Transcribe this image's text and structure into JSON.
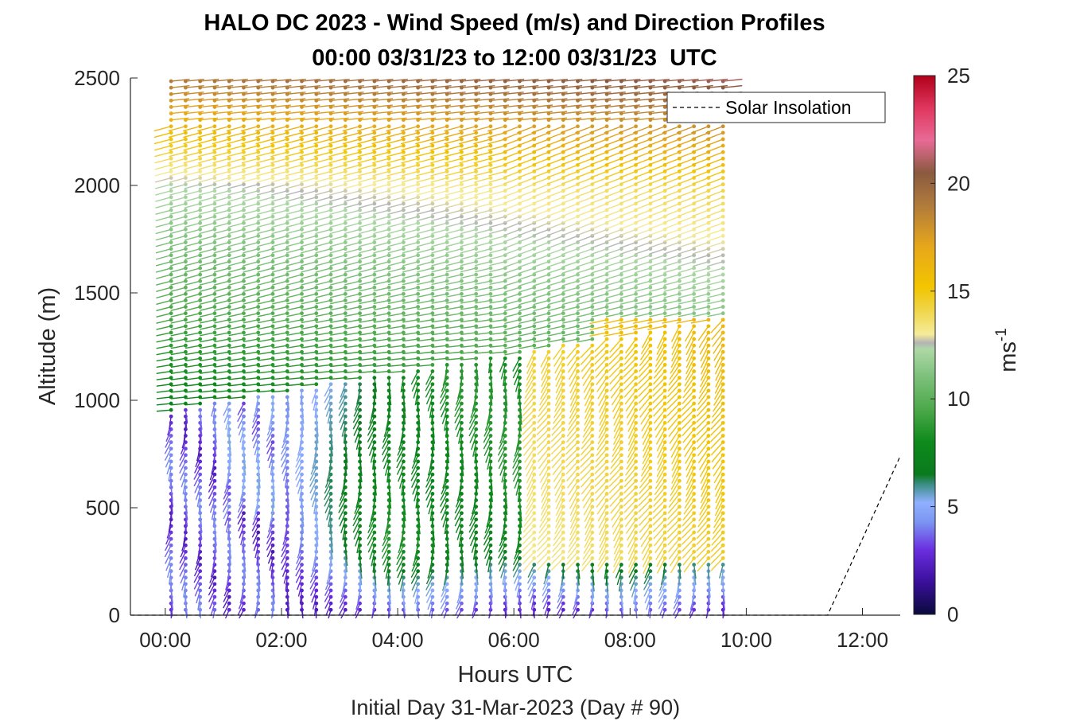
{
  "chart_data": {
    "type": "wind-barb-profile",
    "title": "HALO DC 2023 - Wind Speed (m/s) and Direction Profiles",
    "subtitle": "00:00 03/31/23 to 12:00 03/31/23  UTC",
    "xlabel": "Hours UTC",
    "xlabel2": "Initial Day 31-Mar-2023 (Day # 90)",
    "ylabel": "Altitude (m)",
    "xlim_hours": [
      -0.6,
      12.65
    ],
    "ylim": [
      0,
      2500
    ],
    "x_ticks": [
      {
        "v": 0,
        "label": "00:00"
      },
      {
        "v": 2,
        "label": "02:00"
      },
      {
        "v": 4,
        "label": "04:00"
      },
      {
        "v": 6,
        "label": "06:00"
      },
      {
        "v": 8,
        "label": "08:00"
      },
      {
        "v": 10,
        "label": "10:00"
      },
      {
        "v": 12,
        "label": "12:00"
      }
    ],
    "y_ticks": [
      0,
      500,
      1000,
      1500,
      2000,
      2500
    ],
    "colorbar": {
      "label": "ms",
      "label_sup": "-1",
      "range": [
        0,
        25
      ],
      "ticks": [
        0,
        5,
        10,
        15,
        20,
        25
      ],
      "stops": [
        {
          "v": 0,
          "c": "#0a0a3c"
        },
        {
          "v": 1.5,
          "c": "#3a0f9a"
        },
        {
          "v": 3,
          "c": "#6a2ee0"
        },
        {
          "v": 4.3,
          "c": "#7b96f2"
        },
        {
          "v": 5.2,
          "c": "#8fb0ff"
        },
        {
          "v": 6,
          "c": "#3f8f8a"
        },
        {
          "v": 6.5,
          "c": "#0a7a1e"
        },
        {
          "v": 8,
          "c": "#0e8a1c"
        },
        {
          "v": 9.5,
          "c": "#4ca84a"
        },
        {
          "v": 11,
          "c": "#7cc07a"
        },
        {
          "v": 12.3,
          "c": "#aed8a6"
        },
        {
          "v": 12.6,
          "c": "#b4b4b4"
        },
        {
          "v": 13,
          "c": "#f5ec9a"
        },
        {
          "v": 14.3,
          "c": "#f0d23c"
        },
        {
          "v": 15.2,
          "c": "#f2c500"
        },
        {
          "v": 17,
          "c": "#e8a81a"
        },
        {
          "v": 19,
          "c": "#b07a3c"
        },
        {
          "v": 20.5,
          "c": "#8a5a40"
        },
        {
          "v": 22,
          "c": "#e86a96"
        },
        {
          "v": 23.5,
          "c": "#e0365e"
        },
        {
          "v": 25,
          "c": "#b0001a"
        }
      ]
    },
    "legend": {
      "entries": [
        {
          "name": "Solar Insolation",
          "style": "dashed"
        }
      ],
      "position": "top-right"
    },
    "solar_insolation": {
      "x": [
        -0.6,
        11.4,
        12.65
      ],
      "y": [
        0,
        0,
        740
      ]
    },
    "profile_times_hours": {
      "start": 0.1,
      "end": 9.8,
      "step": 0.25
    },
    "altitude_levels_m": {
      "start": 25,
      "end": 2490,
      "step": 30
    },
    "speed_field_summary": [
      {
        "region": "00:00-02:00 below 950 m",
        "speed_ms": [
          1.5,
          5
        ]
      },
      {
        "region": "02:00-06:30 below 950 m",
        "speed_ms": [
          2,
          9
        ]
      },
      {
        "region": "06:30-10:00 300-1000 m",
        "speed_ms": [
          13,
          17
        ]
      },
      {
        "region": "1000-2000 m before 04:30",
        "speed_ms": [
          7,
          12
        ]
      },
      {
        "region": "2000-2500 m",
        "speed_ms": [
          14,
          23
        ]
      }
    ]
  }
}
